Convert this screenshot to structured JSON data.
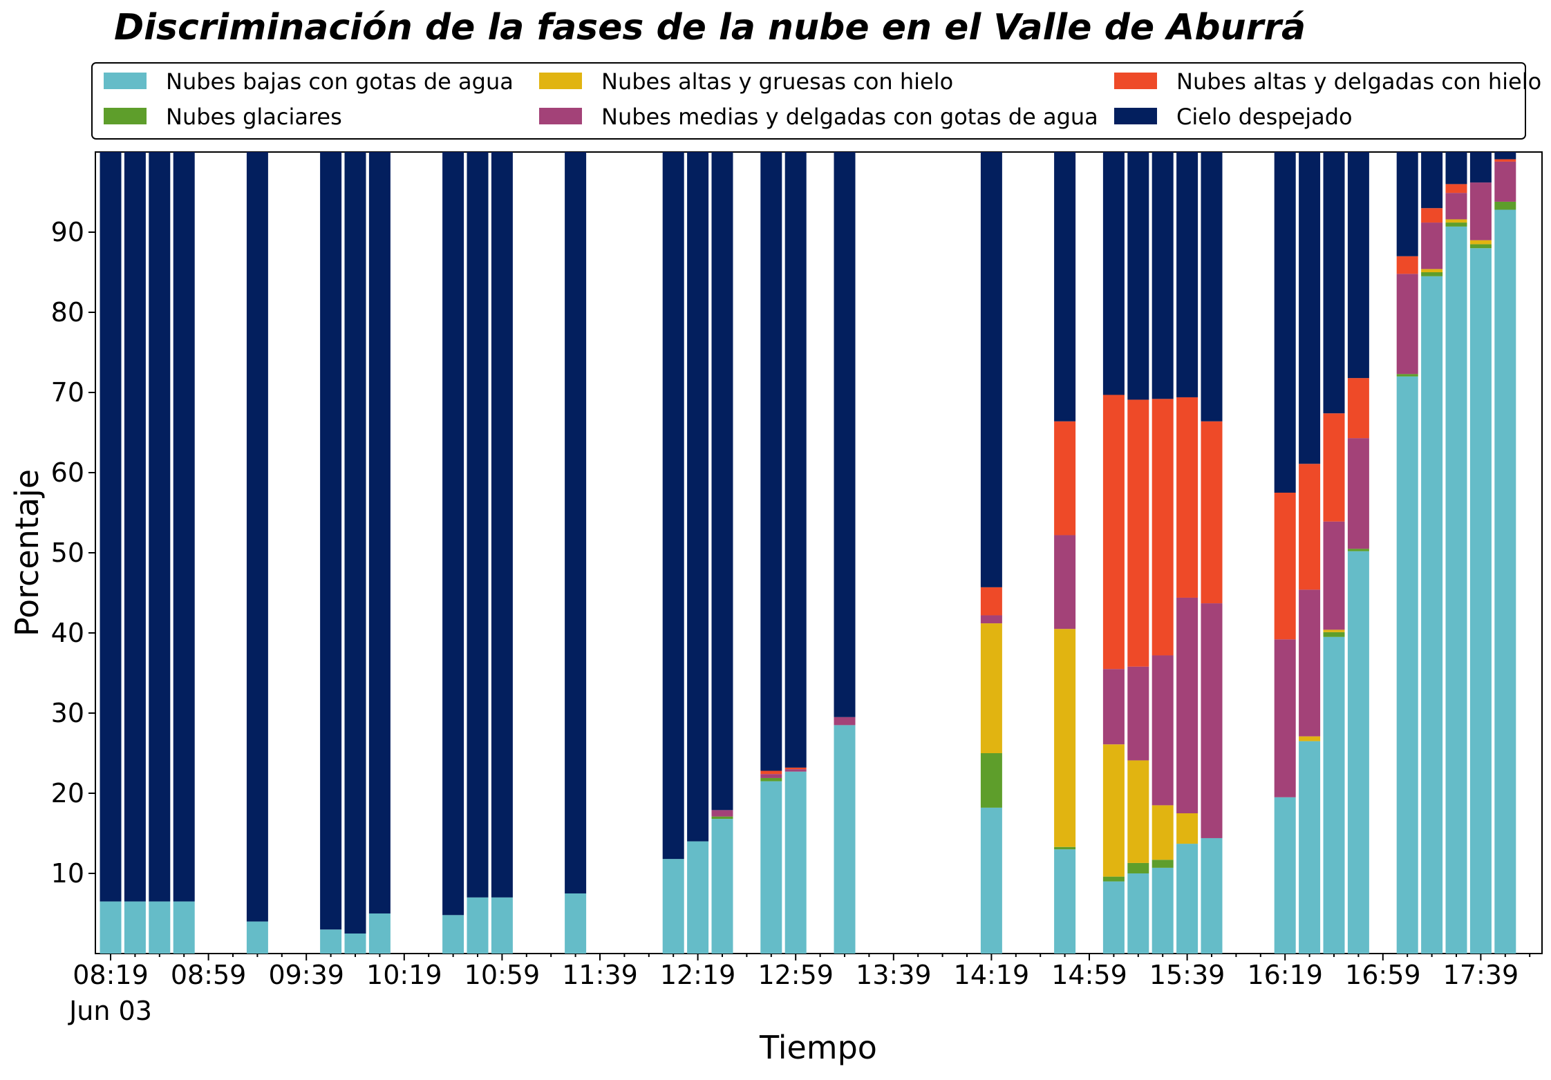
{
  "chart_data": {
    "type": "bar",
    "stacked": true,
    "title": "Discriminación de la fases de la nube en el Valle de Aburrá",
    "xlabel": "Tiempo",
    "ylabel": "Porcentaje",
    "ylim": [
      0,
      100
    ],
    "yticks": [
      10,
      20,
      30,
      40,
      50,
      60,
      70,
      80,
      90
    ],
    "grid": false,
    "legend_position": "top",
    "x_date_label": "Jun 03",
    "xtick_labels": [
      "08:19",
      "08:59",
      "09:39",
      "10:19",
      "10:59",
      "11:39",
      "12:19",
      "12:59",
      "13:39",
      "14:19",
      "14:59",
      "15:39",
      "16:19",
      "16:59",
      "17:39"
    ],
    "x_start": "08:19",
    "slot_minutes": 10,
    "slots": [
      0,
      1,
      2,
      3,
      6,
      9,
      10,
      11,
      14,
      15,
      16,
      19,
      23,
      24,
      25,
      27,
      28,
      30,
      36,
      39,
      41,
      42,
      43,
      44,
      45,
      48,
      49,
      50,
      51,
      53,
      54,
      55,
      56,
      57
    ],
    "series": [
      {
        "name": "Nubes bajas con gotas de agua",
        "color": "#65bcc8",
        "values": [
          6.5,
          6.5,
          6.5,
          6.5,
          4,
          3,
          2.5,
          5,
          4.8,
          7,
          7,
          7.5,
          11.8,
          14,
          16.8,
          21.5,
          22.7,
          28.5,
          18.2,
          13,
          9,
          10,
          10.7,
          13.7,
          14.4,
          19.5,
          26.5,
          39.5,
          50.2,
          72,
          84.5,
          90.7,
          88,
          92.8
        ]
      },
      {
        "name": "Nubes glaciares",
        "color": "#5e9e2b",
        "values": [
          0,
          0,
          0,
          0,
          0,
          0,
          0,
          0,
          0,
          0,
          0,
          0,
          0,
          0,
          0.3,
          0.4,
          0,
          0,
          6.8,
          0.3,
          0.6,
          1.3,
          1,
          0,
          0,
          0,
          0,
          0.6,
          0.3,
          0.3,
          0.5,
          0.5,
          0.5,
          1
        ]
      },
      {
        "name": "Nubes altas y gruesas con hielo",
        "color": "#e1b411",
        "values": [
          0,
          0,
          0,
          0,
          0,
          0,
          0,
          0,
          0,
          0,
          0,
          0,
          0,
          0,
          0,
          0,
          0,
          0,
          16.2,
          27.2,
          16.5,
          12.8,
          6.8,
          3.8,
          0,
          0,
          0.6,
          0.3,
          0,
          0,
          0.4,
          0.4,
          0.5,
          0
        ]
      },
      {
        "name": "Nubes medias y delgadas con gotas de agua",
        "color": "#a34278",
        "values": [
          0,
          0,
          0,
          0,
          0,
          0,
          0,
          0,
          0,
          0,
          0,
          0,
          0,
          0,
          0.8,
          0.5,
          0.3,
          1,
          1,
          11.7,
          9.4,
          11.7,
          18.7,
          26.9,
          29.3,
          19.7,
          18.3,
          13.5,
          13.8,
          12.5,
          5.8,
          3.3,
          7.2,
          5
        ]
      },
      {
        "name": "Nubes altas y delgadas con hielo",
        "color": "#ee4a28",
        "values": [
          0,
          0,
          0,
          0,
          0,
          0,
          0,
          0,
          0,
          0,
          0,
          0,
          0,
          0,
          0,
          0.4,
          0.2,
          0,
          3.5,
          14.2,
          34.2,
          33.3,
          32,
          25,
          22.7,
          18.3,
          15.7,
          13.5,
          7.5,
          2.2,
          1.8,
          1.1,
          0,
          0.3
        ]
      },
      {
        "name": "Cielo despejado",
        "color": "#031f5e",
        "values": [
          93.5,
          93.5,
          93.5,
          93.5,
          96,
          97,
          97.5,
          95,
          95.2,
          93,
          93,
          92.5,
          88.2,
          86,
          82.1,
          77.3,
          76.8,
          70.5,
          54.3,
          33.6,
          30.3,
          30.9,
          30.8,
          30.6,
          33.6,
          42.5,
          38.9,
          32.6,
          28.2,
          13,
          7,
          4,
          3.8,
          0.9
        ]
      }
    ]
  }
}
